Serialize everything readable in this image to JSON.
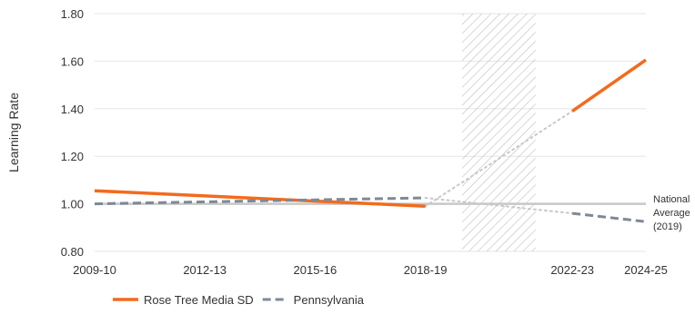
{
  "chart_data": {
    "type": "line",
    "ylabel": "Learning Rate",
    "ylim": [
      0.8,
      1.8
    ],
    "yticks": [
      "0.80",
      "1.00",
      "1.20",
      "1.40",
      "1.60",
      "1.80"
    ],
    "x_tick_labels": [
      "2009-10",
      "2012-13",
      "2015-16",
      "2018-19",
      "2022-23",
      "2024-25"
    ],
    "x_tick_years": [
      2009,
      2012,
      2015,
      2018,
      2022,
      2024
    ],
    "xlim": [
      2009,
      2024
    ],
    "shaded_period": [
      2019,
      2021
    ],
    "reference_line": {
      "value": 1.0,
      "label_lines": [
        "National",
        "Average",
        "(2019)"
      ]
    },
    "series": [
      {
        "name": "Rose Tree Media SD",
        "color": "#F26B1D",
        "style": "solid",
        "segments": [
          {
            "x": [
              2009,
              2018
            ],
            "y": [
              1.055,
              0.99
            ]
          },
          {
            "x": [
              2022,
              2024
            ],
            "y": [
              1.39,
              1.605
            ]
          }
        ],
        "projection": {
          "x": [
            2018,
            2022
          ],
          "y": [
            0.99,
            1.39
          ],
          "color": "#C8C8C8"
        }
      },
      {
        "name": "Pennsylvania",
        "color": "#7D8997",
        "style": "dashed",
        "segments": [
          {
            "x": [
              2009,
              2018
            ],
            "y": [
              1.0,
              1.025
            ]
          },
          {
            "x": [
              2022,
              2024
            ],
            "y": [
              0.96,
              0.925
            ]
          }
        ],
        "projection": {
          "x": [
            2018,
            2022
          ],
          "y": [
            1.025,
            0.96
          ],
          "color": "#C8C8C8"
        }
      }
    ],
    "legend_position": "bottom-left"
  }
}
